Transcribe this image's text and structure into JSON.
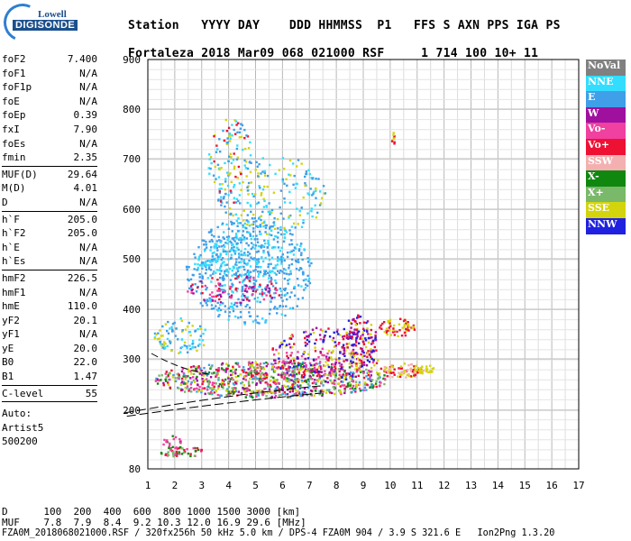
{
  "logo": {
    "line1": "Lowell",
    "line2": "DIGISONDE"
  },
  "header": {
    "labels": [
      "Station",
      "YYYY DAY",
      "DDD",
      "HHMMSS",
      "P1",
      "FFS",
      "S",
      "AXN",
      "PPS",
      "IGA",
      "PS"
    ],
    "station": "Fortaleza",
    "yyyy_day": "2018 Mar09",
    "ddd": "068",
    "hhmmss": "021000",
    "p1": "RSF",
    "s": "1",
    "axn": "714",
    "pps": "100",
    "iga": "10+",
    "ps": "11"
  },
  "params": [
    {
      "group": [
        {
          "k": "foF2",
          "v": "7.400"
        },
        {
          "k": "foF1",
          "v": "N/A"
        },
        {
          "k": "foF1p",
          "v": "N/A"
        },
        {
          "k": "foE",
          "v": "N/A"
        },
        {
          "k": "foEp",
          "v": "0.39"
        },
        {
          "k": "fxI",
          "v": "7.90"
        },
        {
          "k": "foEs",
          "v": "N/A"
        },
        {
          "k": "fmin",
          "v": "2.35"
        }
      ]
    },
    {
      "group": [
        {
          "k": "MUF(D)",
          "v": "29.64"
        },
        {
          "k": "M(D)",
          "v": "4.01"
        },
        {
          "k": "D",
          "v": "N/A"
        }
      ]
    },
    {
      "group": [
        {
          "k": "h`F",
          "v": "205.0"
        },
        {
          "k": "h`F2",
          "v": "205.0"
        },
        {
          "k": "h`E",
          "v": "N/A"
        },
        {
          "k": "h`Es",
          "v": "N/A"
        }
      ]
    },
    {
      "group": [
        {
          "k": "hmF2",
          "v": "226.5"
        },
        {
          "k": "hmF1",
          "v": "N/A"
        },
        {
          "k": "hmE",
          "v": "110.0"
        },
        {
          "k": "yF2",
          "v": "20.1"
        },
        {
          "k": "yF1",
          "v": "N/A"
        },
        {
          "k": "yE",
          "v": "20.0"
        },
        {
          "k": "B0",
          "v": "22.0"
        },
        {
          "k": "B1",
          "v": "1.47"
        }
      ]
    },
    {
      "group": [
        {
          "k": "C-level",
          "v": "55"
        }
      ]
    }
  ],
  "autoscaling": {
    "line1": "Auto:",
    "line2": "Artist5",
    "line3": "500200"
  },
  "axes": {
    "y_ticks": [
      "80",
      "200",
      "300",
      "400",
      "500",
      "600",
      "700",
      "800",
      "900"
    ],
    "x_ticks": [
      "1",
      "2",
      "3",
      "4",
      "5",
      "6",
      "7",
      "8",
      "9",
      "10",
      "11",
      "12",
      "13",
      "14",
      "15",
      "16",
      "17"
    ]
  },
  "legend": [
    {
      "label": "NoVal",
      "color": "#808080"
    },
    {
      "label": "NNE",
      "color": "#33ddff"
    },
    {
      "label": "E",
      "color": "#3f9fe8"
    },
    {
      "label": "W",
      "color": "#a0109f"
    },
    {
      "label": "Vo-",
      "color": "#f040a0"
    },
    {
      "label": "Vo+",
      "color": "#ee1133"
    },
    {
      "label": "SSW",
      "color": "#f4b0b0"
    },
    {
      "label": "X-",
      "color": "#108810"
    },
    {
      "label": "X+",
      "color": "#7ab86a"
    },
    {
      "label": "SSE",
      "color": "#d4d40c"
    },
    {
      "label": "NNW",
      "color": "#2020e0"
    }
  ],
  "footer": {
    "d_row": "D      100  200  400  600  800 1000 1500 3000 [km]",
    "muf_row": "MUF    7.8  7.9  8.4  9.2 10.3 12.0 16.9 29.6 [MHz]",
    "info_row": "FZA0M_2018068021000.RSF / 320fx256h 50 kHz 5.0 km / DPS-4 FZA0M 904 / 3.9 S 321.6 E   Ion2Png 1.3.20"
  }
}
